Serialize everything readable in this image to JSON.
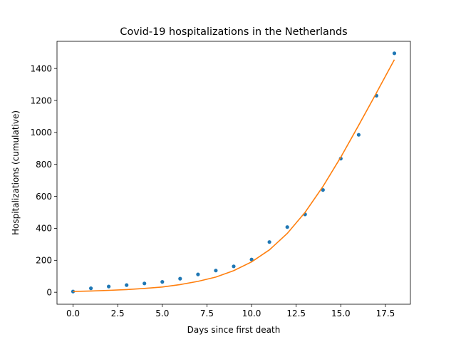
{
  "chart_data": {
    "type": "scatter",
    "title": "Covid-19 hospitalizations in the Netherlands",
    "xlabel": "Days since first death",
    "ylabel": "Hospitalizations (cumulative)",
    "xlim": [
      -0.9,
      18.9
    ],
    "ylim": [
      -75,
      1570
    ],
    "xticks": [
      0,
      2.5,
      5,
      7.5,
      10,
      12.5,
      15,
      17.5
    ],
    "xtick_labels": [
      "0.0",
      "2.5",
      "5.0",
      "7.5",
      "10.0",
      "12.5",
      "15.0",
      "17.5"
    ],
    "yticks": [
      0,
      200,
      400,
      600,
      800,
      1000,
      1200,
      1400
    ],
    "ytick_labels": [
      "0",
      "200",
      "400",
      "600",
      "800",
      "1000",
      "1200",
      "1400"
    ],
    "grid": false,
    "series": [
      {
        "kind": "points",
        "color": "#1f77b4",
        "x": [
          0,
          1,
          2,
          3,
          4,
          5,
          6,
          7,
          8,
          9,
          10,
          11,
          12,
          13,
          14,
          15,
          16,
          17,
          18
        ],
        "y": [
          5,
          25,
          36,
          45,
          55,
          65,
          85,
          112,
          136,
          162,
          205,
          314,
          408,
          487,
          640,
          836,
          985,
          1230,
          1495
        ]
      },
      {
        "kind": "line",
        "color": "#ff7f0e",
        "x": [
          0,
          1,
          2,
          3,
          4,
          5,
          6,
          7,
          8,
          9,
          10,
          11,
          12,
          13,
          14,
          15,
          16,
          17,
          18
        ],
        "y": [
          5,
          8,
          12,
          17,
          24,
          33,
          48,
          68,
          95,
          135,
          190,
          265,
          368,
          500,
          662,
          845,
          1045,
          1248,
          1455
        ]
      }
    ]
  }
}
